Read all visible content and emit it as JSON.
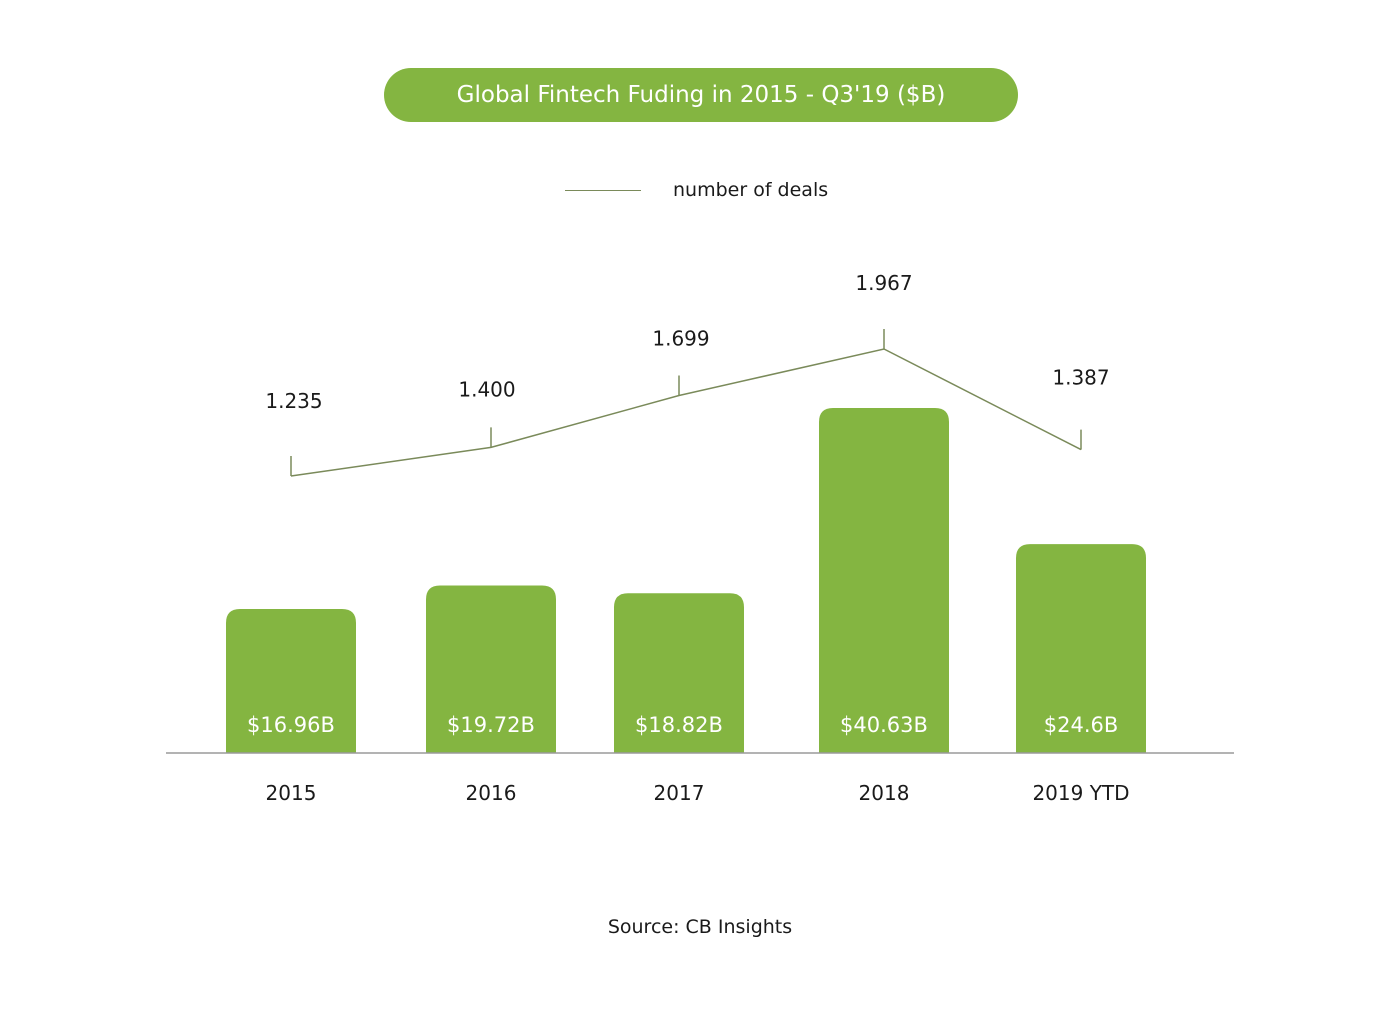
{
  "title": "Global Fintech Fuding in 2015 - Q3'19 ($B)",
  "source": "Source: CB Insights",
  "colors": {
    "bar": "#84b541",
    "line": "#7a8a5a",
    "axis": "#9a9a9a",
    "text": "#1a1a1a",
    "bar_label": "#ffffff"
  },
  "chart_data": {
    "type": "bar",
    "categories": [
      "2015",
      "2016",
      "2017",
      "2018",
      "2019 YTD"
    ],
    "series": [
      {
        "type": "bar",
        "values": [
          16.96,
          19.72,
          18.82,
          40.63,
          24.6
        ],
        "labels": [
          "$16.96B",
          "$19.72B",
          "$18.82B",
          "$40.63B",
          "$24.6B"
        ]
      },
      {
        "name": "number of deals",
        "type": "line",
        "values": [
          1.235,
          1.4,
          1.699,
          1.967,
          1.387
        ],
        "labels": [
          "1.235",
          "1.400",
          "1.699",
          "1.967",
          "1.387"
        ]
      }
    ],
    "legend": {
      "position": "top-center",
      "entries": [
        "number of deals"
      ]
    },
    "grid": false
  }
}
